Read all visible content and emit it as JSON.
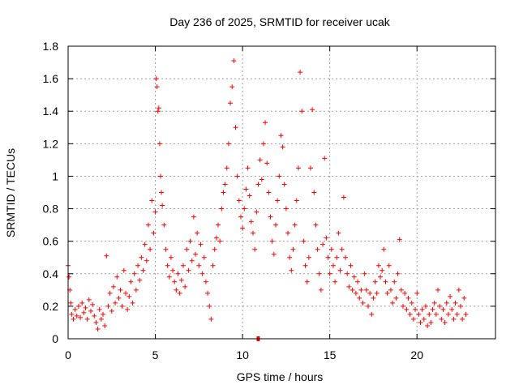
{
  "chart_data": {
    "type": "scatter",
    "title": "Day 236 of 2025, SRMTID for receiver ucak",
    "xlabel": "GPS time / hours",
    "ylabel": "SRMTID / TECUs",
    "xlim": [
      0,
      24.5
    ],
    "ylim": [
      0,
      1.8
    ],
    "xticks": [
      0,
      5,
      10,
      15,
      20
    ],
    "xtick_labels": [
      "0",
      "5",
      "10",
      "15",
      "20"
    ],
    "yticks": [
      0,
      0.2,
      0.4,
      0.6,
      0.8,
      1.0,
      1.2,
      1.4,
      1.6,
      1.8
    ],
    "ytick_labels": [
      "0",
      "0.2",
      "0.4",
      "0.6",
      "0.8",
      "1",
      "1.2",
      "1.4",
      "1.6",
      "1.8"
    ],
    "grid": true,
    "marker": "+",
    "color": "#ff0000",
    "series": [
      {
        "name": "SRMTID",
        "points": [
          [
            0.0,
            0.45
          ],
          [
            0.05,
            0.38
          ],
          [
            0.1,
            0.3
          ],
          [
            0.15,
            0.22
          ],
          [
            0.2,
            0.15
          ],
          [
            0.3,
            0.12
          ],
          [
            0.4,
            0.18
          ],
          [
            0.5,
            0.14
          ],
          [
            0.6,
            0.2
          ],
          [
            0.7,
            0.13
          ],
          [
            0.8,
            0.22
          ],
          [
            0.9,
            0.16
          ],
          [
            1.0,
            0.19
          ],
          [
            1.1,
            0.12
          ],
          [
            1.2,
            0.24
          ],
          [
            1.3,
            0.17
          ],
          [
            1.4,
            0.21
          ],
          [
            1.5,
            0.14
          ],
          [
            1.6,
            0.1
          ],
          [
            1.7,
            0.06
          ],
          [
            1.8,
            0.18
          ],
          [
            1.9,
            0.12
          ],
          [
            2.0,
            0.15
          ],
          [
            2.1,
            0.08
          ],
          [
            2.2,
            0.51
          ],
          [
            2.3,
            0.2
          ],
          [
            2.4,
            0.28
          ],
          [
            2.5,
            0.17
          ],
          [
            2.6,
            0.32
          ],
          [
            2.7,
            0.22
          ],
          [
            2.8,
            0.38
          ],
          [
            2.9,
            0.25
          ],
          [
            3.0,
            0.3
          ],
          [
            3.1,
            0.2
          ],
          [
            3.2,
            0.42
          ],
          [
            3.3,
            0.28
          ],
          [
            3.4,
            0.18
          ],
          [
            3.5,
            0.26
          ],
          [
            3.6,
            0.35
          ],
          [
            3.7,
            0.22
          ],
          [
            3.8,
            0.4
          ],
          [
            3.9,
            0.3
          ],
          [
            4.0,
            0.45
          ],
          [
            4.1,
            0.36
          ],
          [
            4.2,
            0.5
          ],
          [
            4.3,
            0.42
          ],
          [
            4.4,
            0.58
          ],
          [
            4.5,
            0.48
          ],
          [
            4.6,
            0.7
          ],
          [
            4.7,
            0.55
          ],
          [
            4.8,
            0.85
          ],
          [
            4.9,
            0.65
          ],
          [
            5.0,
            0.78
          ],
          [
            5.05,
            1.6
          ],
          [
            5.1,
            1.55
          ],
          [
            5.15,
            1.4
          ],
          [
            5.2,
            1.42
          ],
          [
            5.25,
            1.2
          ],
          [
            5.3,
            1.0
          ],
          [
            5.35,
            0.9
          ],
          [
            5.4,
            0.82
          ],
          [
            5.5,
            0.7
          ],
          [
            5.6,
            0.55
          ],
          [
            5.7,
            0.45
          ],
          [
            5.8,
            0.38
          ],
          [
            5.9,
            0.5
          ],
          [
            6.0,
            0.42
          ],
          [
            6.1,
            0.35
          ],
          [
            6.2,
            0.3
          ],
          [
            6.3,
            0.4
          ],
          [
            6.4,
            0.28
          ],
          [
            6.5,
            0.36
          ],
          [
            6.6,
            0.45
          ],
          [
            6.7,
            0.32
          ],
          [
            6.8,
            0.55
          ],
          [
            6.9,
            0.42
          ],
          [
            7.0,
            0.6
          ],
          [
            7.1,
            0.48
          ],
          [
            7.2,
            0.75
          ],
          [
            7.3,
            0.52
          ],
          [
            7.4,
            0.65
          ],
          [
            7.5,
            0.45
          ],
          [
            7.6,
            0.58
          ],
          [
            7.7,
            0.4
          ],
          [
            7.8,
            0.5
          ],
          [
            7.9,
            0.35
          ],
          [
            8.0,
            0.28
          ],
          [
            8.1,
            0.2
          ],
          [
            8.2,
            0.12
          ],
          [
            8.3,
            0.45
          ],
          [
            8.4,
            0.55
          ],
          [
            8.5,
            0.62
          ],
          [
            8.6,
            0.7
          ],
          [
            8.7,
            0.6
          ],
          [
            8.8,
            0.8
          ],
          [
            8.9,
            0.9
          ],
          [
            9.0,
            0.95
          ],
          [
            9.1,
            1.05
          ],
          [
            9.2,
            1.2
          ],
          [
            9.3,
            1.45
          ],
          [
            9.4,
            1.55
          ],
          [
            9.5,
            1.71
          ],
          [
            9.6,
            1.3
          ],
          [
            9.7,
            1.0
          ],
          [
            9.8,
            0.85
          ],
          [
            9.9,
            0.75
          ],
          [
            10.0,
            0.68
          ],
          [
            10.1,
            0.8
          ],
          [
            10.2,
            0.92
          ],
          [
            10.3,
            1.05
          ],
          [
            10.4,
            0.88
          ],
          [
            10.5,
            0.72
          ],
          [
            10.6,
            0.65
          ],
          [
            10.7,
            0.55
          ],
          [
            10.8,
            0.78
          ],
          [
            10.9,
            0.95
          ],
          [
            11.0,
            1.1
          ],
          [
            11.1,
            0.98
          ],
          [
            11.2,
            1.2
          ],
          [
            11.3,
            1.33
          ],
          [
            11.4,
            1.08
          ],
          [
            11.5,
            0.9
          ],
          [
            11.6,
            0.75
          ],
          [
            11.7,
            0.6
          ],
          [
            11.8,
            0.52
          ],
          [
            11.9,
            0.7
          ],
          [
            12.0,
            0.85
          ],
          [
            12.1,
            1.0
          ],
          [
            12.2,
            1.25
          ],
          [
            12.3,
            1.18
          ],
          [
            12.4,
            0.95
          ],
          [
            12.5,
            0.8
          ],
          [
            12.6,
            0.65
          ],
          [
            12.7,
            0.5
          ],
          [
            12.8,
            0.42
          ],
          [
            12.9,
            0.55
          ],
          [
            13.0,
            0.7
          ],
          [
            13.1,
            0.85
          ],
          [
            13.2,
            1.05
          ],
          [
            13.3,
            1.64
          ],
          [
            13.4,
            1.4
          ],
          [
            13.5,
            0.6
          ],
          [
            13.6,
            0.45
          ],
          [
            13.7,
            0.35
          ],
          [
            13.8,
            0.5
          ],
          [
            13.9,
            1.05
          ],
          [
            14.0,
            1.41
          ],
          [
            14.1,
            0.9
          ],
          [
            14.2,
            0.7
          ],
          [
            14.3,
            0.55
          ],
          [
            14.4,
            0.4
          ],
          [
            14.5,
            0.3
          ],
          [
            14.6,
            0.58
          ],
          [
            14.7,
            1.11
          ],
          [
            14.8,
            0.62
          ],
          [
            14.9,
            0.5
          ],
          [
            15.0,
            0.4
          ],
          [
            15.1,
            0.55
          ],
          [
            15.2,
            0.45
          ],
          [
            15.3,
            0.35
          ],
          [
            15.4,
            0.5
          ],
          [
            15.5,
            0.65
          ],
          [
            15.6,
            0.42
          ],
          [
            15.7,
            0.55
          ],
          [
            15.8,
            0.87
          ],
          [
            15.9,
            0.5
          ],
          [
            16.0,
            0.4
          ],
          [
            16.1,
            0.32
          ],
          [
            16.2,
            0.45
          ],
          [
            16.3,
            0.3
          ],
          [
            16.4,
            0.38
          ],
          [
            16.5,
            0.28
          ],
          [
            16.6,
            0.35
          ],
          [
            16.7,
            0.25
          ],
          [
            16.8,
            0.3
          ],
          [
            16.9,
            0.22
          ],
          [
            17.0,
            0.4
          ],
          [
            17.1,
            0.3
          ],
          [
            17.2,
            0.2
          ],
          [
            17.3,
            0.28
          ],
          [
            17.4,
            0.15
          ],
          [
            17.5,
            0.25
          ],
          [
            17.6,
            0.35
          ],
          [
            17.7,
            0.28
          ],
          [
            17.8,
            0.45
          ],
          [
            17.9,
            0.38
          ],
          [
            18.0,
            0.42
          ],
          [
            18.1,
            0.55
          ],
          [
            18.2,
            0.35
          ],
          [
            18.3,
            0.28
          ],
          [
            18.4,
            0.45
          ],
          [
            18.5,
            0.3
          ],
          [
            18.6,
            0.22
          ],
          [
            18.7,
            0.35
          ],
          [
            18.8,
            0.25
          ],
          [
            18.9,
            0.4
          ],
          [
            19.0,
            0.61
          ],
          [
            19.1,
            0.3
          ],
          [
            19.2,
            0.2
          ],
          [
            19.3,
            0.28
          ],
          [
            19.4,
            0.18
          ],
          [
            19.5,
            0.25
          ],
          [
            19.6,
            0.15
          ],
          [
            19.7,
            0.22
          ],
          [
            19.8,
            0.12
          ],
          [
            19.9,
            0.18
          ],
          [
            20.0,
            0.28
          ],
          [
            20.1,
            0.15
          ],
          [
            20.2,
            0.1
          ],
          [
            20.3,
            0.18
          ],
          [
            20.4,
            0.12
          ],
          [
            20.5,
            0.2
          ],
          [
            20.6,
            0.08
          ],
          [
            20.7,
            0.15
          ],
          [
            20.8,
            0.1
          ],
          [
            20.9,
            0.18
          ],
          [
            21.0,
            0.22
          ],
          [
            21.1,
            0.15
          ],
          [
            21.2,
            0.3
          ],
          [
            21.3,
            0.2
          ],
          [
            21.4,
            0.12
          ],
          [
            21.5,
            0.18
          ],
          [
            21.6,
            0.1
          ],
          [
            21.7,
            0.22
          ],
          [
            21.8,
            0.15
          ],
          [
            21.9,
            0.26
          ],
          [
            22.0,
            0.18
          ],
          [
            22.1,
            0.12
          ],
          [
            22.2,
            0.22
          ],
          [
            22.3,
            0.15
          ],
          [
            22.4,
            0.3
          ],
          [
            22.5,
            0.2
          ],
          [
            22.6,
            0.12
          ],
          [
            22.7,
            0.25
          ],
          [
            22.8,
            0.15
          ]
        ]
      }
    ],
    "annotations": [
      {
        "label": "data-gap marker",
        "x": 10.9,
        "y": 0.0
      }
    ]
  }
}
